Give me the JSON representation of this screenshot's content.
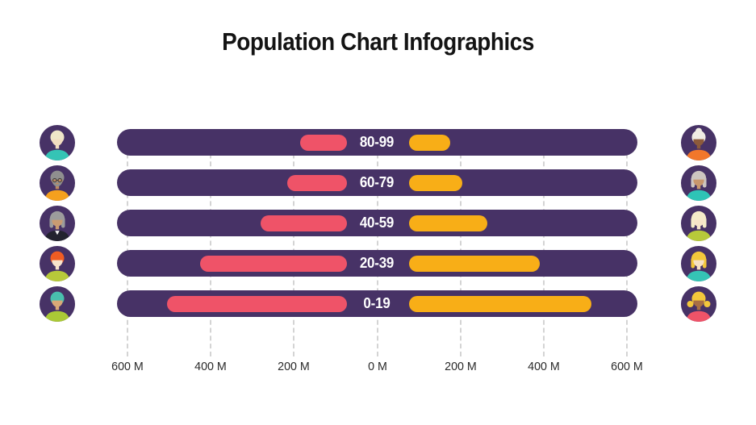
{
  "title": "Population Chart Infographics",
  "colors": {
    "slide_background": "#ffffff",
    "track_purple": "#473266",
    "left_bar_pink": "#ef5368",
    "right_bar_yellow": "#f8ae17",
    "grid_dash": "#d4d4d4",
    "axis_text": "#2b2b2b",
    "title_text": "#141414",
    "bar_label_text": "#ffffff"
  },
  "chart_data": {
    "type": "bar",
    "variant": "horizontal-population-pyramid",
    "title": "Population Chart Infographics",
    "categories_top_to_bottom": [
      "80-99",
      "60-79",
      "40-59",
      "20-39",
      "0-19"
    ],
    "unit": "millions of people",
    "series": [
      {
        "name": "left-population",
        "side": "left",
        "color": "#ef5368",
        "values": [
          185,
          215,
          280,
          425,
          505
        ]
      },
      {
        "name": "right-population",
        "side": "right",
        "color": "#f8ae17",
        "values": [
          175,
          205,
          265,
          390,
          515
        ]
      }
    ],
    "x_axis": {
      "tick_values": [
        -600,
        -400,
        -200,
        0,
        200,
        400,
        600
      ],
      "tick_labels": [
        "600 M",
        "400 M",
        "200 M",
        "0 M",
        "200 M",
        "400 M",
        "600 M"
      ]
    },
    "xlim": [
      -625,
      625
    ],
    "grid": {
      "vertical_dashed": true,
      "color": "#d4d4d4"
    },
    "legend": "none",
    "bar_labels_inside_track": true,
    "track_full_width": true
  },
  "avatars": {
    "left": [
      {
        "id": "avatar-elder-blond-teal-shirt",
        "style": "short",
        "skin": "#f2ddc0",
        "hair": "#efe6c8",
        "shirt": "#35c4b5"
      },
      {
        "id": "avatar-man-gray-beard-glasses-orange-shirt",
        "style": "beard-glasses",
        "skin": "#c08a5f",
        "hair": "#8f8f8f",
        "shirt": "#f5a01e"
      },
      {
        "id": "avatar-gray-bob-black-jacket",
        "style": "jacket",
        "skin": "#c99b72",
        "hair": "#9c9c9c",
        "shirt": "#23232f"
      },
      {
        "id": "avatar-red-hair-lime-shirt",
        "style": "short",
        "skin": "#f8e3cb",
        "hair": "#f05c23",
        "shirt": "#b7c93a"
      },
      {
        "id": "avatar-kid-teal-cap-lime-shirt",
        "style": "cap",
        "skin": "#d9a877",
        "hair": "#49bfae",
        "shirt": "#aac936"
      }
    ],
    "right": [
      {
        "id": "avatar-woman-white-bun-orange-shirt",
        "style": "bun",
        "skin": "#8c5a3b",
        "hair": "#f0ece4",
        "shirt": "#f2772b"
      },
      {
        "id": "avatar-woman-gray-hair-teal-shirt",
        "style": "bob",
        "skin": "#c9976d",
        "hair": "#cdc5c0",
        "shirt": "#2ec4b6"
      },
      {
        "id": "avatar-woman-platinum-hair-lime-shirt",
        "style": "bob",
        "skin": "#f6e3c9",
        "hair": "#f5ecc9",
        "shirt": "#b7c93a"
      },
      {
        "id": "avatar-woman-blonde-hair-teal-shirt",
        "style": "bob",
        "skin": "#f6e0c4",
        "hair": "#f3c73b",
        "shirt": "#35c4b5"
      },
      {
        "id": "avatar-girl-blonde-pigtails-pink-shirt",
        "style": "pigtails",
        "skin": "#a96f44",
        "hair": "#f3c73b",
        "shirt": "#ef5368"
      }
    ]
  }
}
